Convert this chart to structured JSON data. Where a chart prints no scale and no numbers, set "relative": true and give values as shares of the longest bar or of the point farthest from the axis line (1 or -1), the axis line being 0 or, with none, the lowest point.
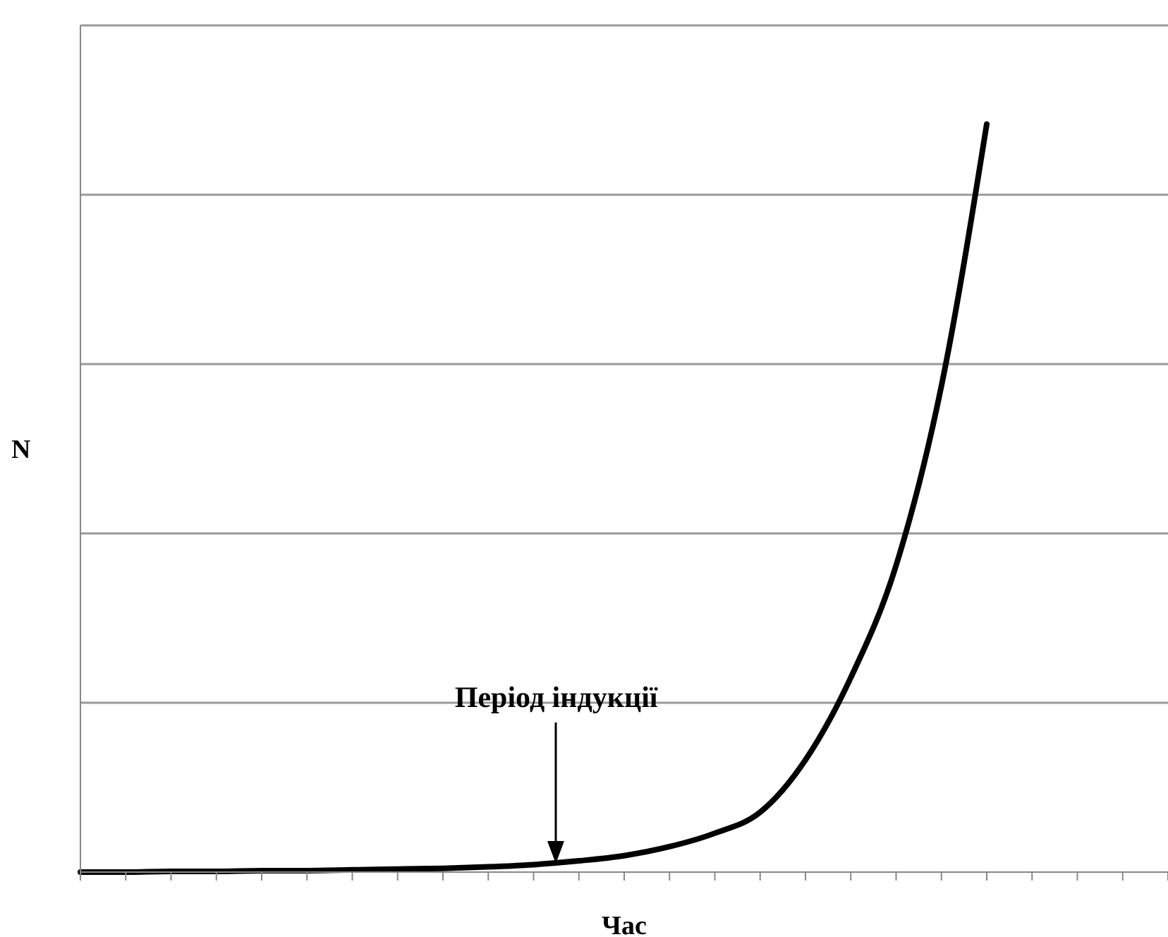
{
  "chart_data": {
    "type": "line",
    "relative": true,
    "xlabel": "Час",
    "ylabel": "N",
    "annotations": [
      "Період індукції"
    ],
    "grid": "y",
    "marker": "none",
    "line_style": "solid",
    "categories": [
      null,
      null,
      null,
      null,
      null,
      null,
      null,
      null,
      null,
      null,
      null,
      null,
      null,
      null,
      null,
      null,
      null,
      null,
      null,
      null,
      null,
      null,
      null,
      null,
      null
    ],
    "series": [
      {
        "color": "#000000",
        "values": [
          0,
          0,
          0.001,
          0.001,
          0.002,
          0.002,
          0.003,
          0.004,
          0.005,
          0.007,
          0.01,
          0.015,
          0.022,
          0.034,
          0.052,
          0.08,
          0.15,
          0.26,
          0.41,
          0.65,
          1,
          null,
          null,
          null,
          null
        ]
      }
    ]
  }
}
